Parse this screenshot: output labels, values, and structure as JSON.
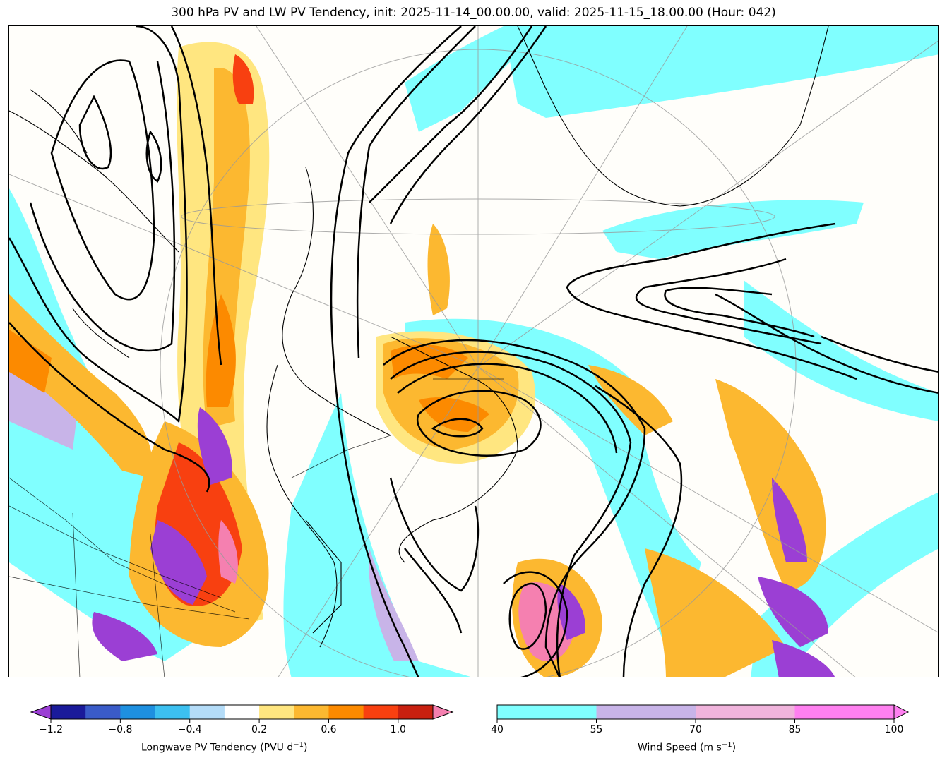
{
  "title": "300 hPa PV and LW PV Tendency, init: 2025-11-14_00.00.00, valid: 2025-11-15_18.00.00 (Hour: 042)",
  "colorbar_left": {
    "label": "Longwave PV Tendency (PVU d",
    "label_sup": "−1",
    "label_end": ")",
    "ticks": [
      "−1.2",
      "−0.8",
      "−0.4",
      "0.2",
      "0.6",
      "1.0"
    ],
    "colors": [
      "#1a1a9a",
      "#3a5bc8",
      "#1e90e0",
      "#3cc0f0",
      "#b4dcf8",
      "#ffffff",
      "#ffe680",
      "#fcb830",
      "#fc8a00",
      "#f84010",
      "#c82010"
    ],
    "under_color": "#9b3fd4",
    "over_color": "#f580b0"
  },
  "colorbar_right": {
    "label": "Wind Speed (m s",
    "label_sup": "−1",
    "label_end": ")",
    "ticks": [
      "40",
      "55",
      "70",
      "85",
      "100"
    ],
    "colors": [
      "#80ffff",
      "#c8b4e8",
      "#f0b4dc",
      "#ff80f0"
    ]
  }
}
